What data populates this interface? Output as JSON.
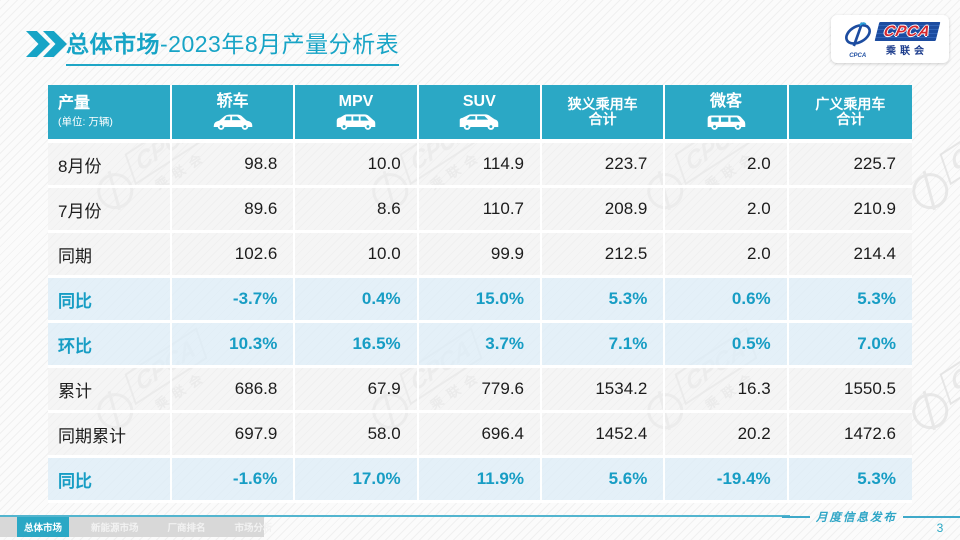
{
  "header": {
    "title_bold": "总体市场",
    "title_rest": "-2023年8月产量分析表"
  },
  "logo": {
    "acronym": "CPCA",
    "cn": "乘联会",
    "swirl_caption": "CPCA"
  },
  "watermark": {
    "acronym": "CPCA",
    "cn": "乘联会"
  },
  "table": {
    "columns": [
      {
        "label": "产量",
        "unit": "(单位: 万辆)"
      },
      {
        "label": "轿车",
        "icon": "sedan-icon"
      },
      {
        "label": "MPV",
        "icon": "mpv-icon"
      },
      {
        "label": "SUV",
        "icon": "suv-icon"
      },
      {
        "label": "狭义乘用车",
        "label2": "合计"
      },
      {
        "label": "微客",
        "icon": "microvan-icon"
      },
      {
        "label": "广义乘用车",
        "label2": "合计"
      }
    ],
    "rows": [
      {
        "label": "8月份",
        "type": "normal",
        "values": [
          "98.8",
          "10.0",
          "114.9",
          "223.7",
          "2.0",
          "225.7"
        ]
      },
      {
        "label": "7月份",
        "type": "normal",
        "values": [
          "89.6",
          "8.6",
          "110.7",
          "208.9",
          "2.0",
          "210.9"
        ]
      },
      {
        "label": "同期",
        "type": "normal",
        "values": [
          "102.6",
          "10.0",
          "99.9",
          "212.5",
          "2.0",
          "214.4"
        ]
      },
      {
        "label": "同比",
        "type": "percent",
        "values": [
          "-3.7%",
          "0.4%",
          "15.0%",
          "5.3%",
          "0.6%",
          "5.3%"
        ]
      },
      {
        "label": "环比",
        "type": "percent",
        "values": [
          "10.3%",
          "16.5%",
          "3.7%",
          "7.1%",
          "0.5%",
          "7.0%"
        ]
      },
      {
        "label": "累计",
        "type": "normal",
        "values": [
          "686.8",
          "67.9",
          "779.6",
          "1534.2",
          "16.3",
          "1550.5"
        ]
      },
      {
        "label": "同期累计",
        "type": "normal",
        "values": [
          "697.9",
          "58.0",
          "696.4",
          "1452.4",
          "20.2",
          "1472.6"
        ]
      },
      {
        "label": "同比",
        "type": "percent",
        "values": [
          "-1.6%",
          "17.0%",
          "11.9%",
          "5.6%",
          "-19.4%",
          "5.3%"
        ]
      }
    ]
  },
  "footer": {
    "tabs": [
      {
        "label": "总体市场",
        "active": true
      },
      {
        "label": "新能源市场",
        "active": false
      },
      {
        "label": "厂商排名",
        "active": false
      },
      {
        "label": "市场分析",
        "active": false
      }
    ],
    "caption": "月度信息发布",
    "page": "3"
  },
  "colors": {
    "accent": "#2BA8C5",
    "percent_text": "#179DC4",
    "percent_row_bg": "#E7F1F8",
    "title_text": "#17A4C6",
    "logo_blue": "#1C4CA0",
    "logo_red": "#D6272E",
    "tabstrip_bg": "#D8D8D8"
  }
}
